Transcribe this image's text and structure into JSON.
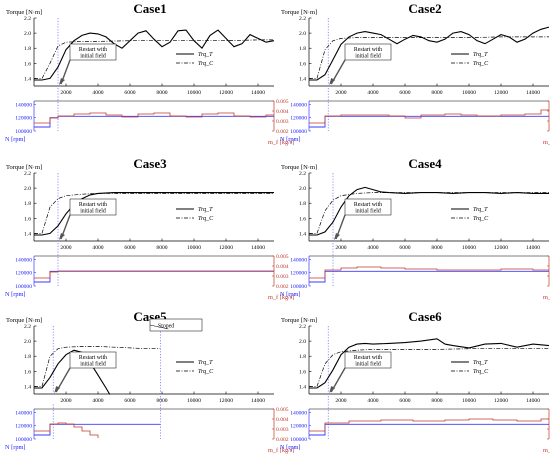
{
  "colors": {
    "N": "#3b3bff",
    "m": "#c0392b",
    "Trq": "#000000",
    "axis": "#000000"
  },
  "common": {
    "torque_label": "Torque [N·m]",
    "legend_t": "Trq_T",
    "legend_c": "Trq_C",
    "n_label": "N [rpm]",
    "m_label": "m_f [kg/s]",
    "restart_text": [
      "Restart with",
      "initial field"
    ],
    "stopped_text": "Stoped"
  },
  "chart_data": [
    {
      "type": "line",
      "title": "Case1",
      "xlabel": "",
      "ylabel": "Torque [N·m]",
      "xlim": [
        0,
        15000
      ],
      "ylim": [
        1.3,
        2.2
      ],
      "yticks": [
        1.4,
        1.6,
        1.8,
        2.0,
        2.2
      ],
      "xticks": [
        2000,
        4000,
        6000,
        8000,
        10000,
        12000,
        14000
      ],
      "restart_x": 1500,
      "stopped": false,
      "series": [
        {
          "name": "Trq_T",
          "style": "solid",
          "x": [
            0,
            500,
            1000,
            1500,
            2000,
            2500,
            3000,
            3500,
            4000,
            4500,
            5000,
            5500,
            6000,
            6500,
            7000,
            7500,
            8000,
            8500,
            9000,
            9500,
            10000,
            10500,
            11000,
            11500,
            12000,
            12500,
            13000,
            13500,
            14000,
            14500,
            15000
          ],
          "y": [
            1.38,
            1.38,
            1.4,
            1.55,
            1.78,
            1.9,
            1.97,
            2.0,
            1.99,
            1.95,
            1.86,
            1.8,
            1.9,
            2.0,
            2.03,
            1.92,
            1.82,
            1.88,
            2.03,
            2.04,
            1.9,
            1.8,
            1.97,
            2.04,
            1.93,
            1.82,
            1.86,
            1.98,
            1.93,
            1.88,
            1.9
          ]
        },
        {
          "name": "Trq_C",
          "style": "dashdot",
          "x": [
            0,
            500,
            1000,
            1500,
            2000,
            3000,
            4000,
            6000,
            8000,
            10000,
            12000,
            14000,
            15000
          ],
          "y": [
            1.4,
            1.4,
            1.6,
            1.83,
            1.88,
            1.89,
            1.89,
            1.9,
            1.9,
            1.9,
            1.9,
            1.91,
            1.91
          ]
        }
      ],
      "n_rpm": {
        "yticks": [
          100000,
          120000,
          140000
        ],
        "ylim": [
          100000,
          145000
        ],
        "x": [
          0,
          500,
          1000,
          1500,
          15000
        ],
        "y": [
          106000,
          106000,
          120000,
          122000,
          122000
        ]
      },
      "m_f": {
        "yticks": [
          0.002,
          0.003,
          0.004,
          0.005
        ],
        "ylim": [
          0.002,
          0.005
        ],
        "x": [
          0,
          1000,
          1500,
          2500,
          3500,
          4500,
          5500,
          6500,
          7500,
          8500,
          9500,
          10500,
          11500,
          12500,
          13500,
          14500,
          15000
        ],
        "y": [
          0.0028,
          0.0033,
          0.0035,
          0.0037,
          0.0038,
          0.0036,
          0.0034,
          0.0037,
          0.0038,
          0.0035,
          0.0034,
          0.0037,
          0.0038,
          0.0035,
          0.0034,
          0.0036,
          0.0036
        ]
      }
    },
    {
      "type": "line",
      "title": "Case2",
      "xlabel": "",
      "ylabel": "Torque [N·m]",
      "xlim": [
        0,
        15000
      ],
      "ylim": [
        1.3,
        2.2
      ],
      "yticks": [
        1.4,
        1.6,
        1.8,
        2.0,
        2.2
      ],
      "xticks": [
        2000,
        4000,
        6000,
        8000,
        10000,
        12000,
        14000
      ],
      "restart_x": 1200,
      "stopped": false,
      "series": [
        {
          "name": "Trq_T",
          "style": "solid",
          "x": [
            0,
            500,
            1000,
            1500,
            2000,
            2500,
            3000,
            3500,
            4000,
            4500,
            5000,
            5500,
            6000,
            6500,
            7000,
            7500,
            8000,
            8500,
            9000,
            9500,
            10000,
            10500,
            11000,
            11500,
            12000,
            12500,
            13000,
            13500,
            14000,
            14500,
            15000
          ],
          "y": [
            1.38,
            1.38,
            1.45,
            1.65,
            1.85,
            1.95,
            2.0,
            2.02,
            2.0,
            1.98,
            1.92,
            1.86,
            1.92,
            1.97,
            1.95,
            1.9,
            1.88,
            1.92,
            2.0,
            2.02,
            1.98,
            1.9,
            1.86,
            1.92,
            1.98,
            1.95,
            1.88,
            1.92,
            2.0,
            2.05,
            2.08
          ]
        },
        {
          "name": "Trq_C",
          "style": "dashdot",
          "x": [
            0,
            500,
            1000,
            1500,
            2000,
            3000,
            4000,
            6000,
            8000,
            10000,
            12000,
            14000,
            15000
          ],
          "y": [
            1.4,
            1.4,
            1.78,
            1.9,
            1.93,
            1.94,
            1.94,
            1.94,
            1.94,
            1.94,
            1.95,
            1.95,
            1.95
          ]
        }
      ],
      "n_rpm": {
        "yticks": [
          100000,
          120000,
          140000
        ],
        "ylim": [
          100000,
          145000
        ],
        "x": [
          0,
          500,
          1000,
          15000
        ],
        "y": [
          106000,
          106000,
          122000,
          122000
        ]
      },
      "m_f": {
        "yticks": [
          0.002,
          0.003,
          0.004,
          0.005
        ],
        "ylim": [
          0.002,
          0.005
        ],
        "x": [
          0,
          1000,
          2000,
          3500,
          5000,
          6000,
          7000,
          8500,
          9500,
          10500,
          12000,
          13500,
          14500,
          15000
        ],
        "y": [
          0.0028,
          0.0035,
          0.0036,
          0.0036,
          0.0035,
          0.0033,
          0.0036,
          0.0037,
          0.0036,
          0.0035,
          0.0036,
          0.0037,
          0.0041,
          0.0041
        ]
      }
    },
    {
      "type": "line",
      "title": "Case3",
      "xlabel": "",
      "ylabel": "Torque [N·m]",
      "xlim": [
        0,
        15000
      ],
      "ylim": [
        1.3,
        2.2
      ],
      "yticks": [
        1.4,
        1.6,
        1.8,
        2.0,
        2.2
      ],
      "xticks": [
        2000,
        4000,
        6000,
        8000,
        10000,
        12000,
        14000
      ],
      "restart_x": 1500,
      "stopped": false,
      "series": [
        {
          "name": "Trq_T",
          "style": "solid",
          "x": [
            0,
            500,
            1000,
            1500,
            2000,
            2500,
            3000,
            3500,
            4000,
            5000,
            6000,
            7000,
            8000,
            9000,
            10000,
            11000,
            12000,
            13000,
            14000,
            15000
          ],
          "y": [
            1.38,
            1.38,
            1.4,
            1.5,
            1.66,
            1.78,
            1.86,
            1.91,
            1.93,
            1.94,
            1.94,
            1.94,
            1.94,
            1.94,
            1.94,
            1.94,
            1.94,
            1.94,
            1.94,
            1.94
          ]
        },
        {
          "name": "Trq_C",
          "style": "dashdot",
          "x": [
            0,
            500,
            1000,
            1500,
            2000,
            3000,
            4000,
            6000,
            8000,
            10000,
            12000,
            14000,
            15000
          ],
          "y": [
            1.4,
            1.4,
            1.75,
            1.86,
            1.9,
            1.92,
            1.93,
            1.93,
            1.93,
            1.93,
            1.93,
            1.93,
            1.93
          ]
        }
      ],
      "n_rpm": {
        "yticks": [
          100000,
          120000,
          140000
        ],
        "ylim": [
          100000,
          145000
        ],
        "x": [
          0,
          500,
          1000,
          15000
        ],
        "y": [
          106000,
          106000,
          122000,
          122000
        ]
      },
      "m_f": {
        "yticks": [
          0.002,
          0.003,
          0.004,
          0.005
        ],
        "ylim": [
          0.002,
          0.005
        ],
        "x": [
          0,
          1000,
          1500,
          15000
        ],
        "y": [
          0.0028,
          0.0034,
          0.0035,
          0.0035
        ]
      }
    },
    {
      "type": "line",
      "title": "Case4",
      "xlabel": "",
      "ylabel": "Torque [N·m]",
      "xlim": [
        0,
        15000
      ],
      "ylim": [
        1.3,
        2.2
      ],
      "yticks": [
        1.4,
        1.6,
        1.8,
        2.0,
        2.2
      ],
      "xticks": [
        2000,
        4000,
        6000,
        8000,
        10000,
        12000,
        14000
      ],
      "restart_x": 1500,
      "stopped": false,
      "series": [
        {
          "name": "Trq_T",
          "style": "solid",
          "x": [
            0,
            500,
            1000,
            1500,
            2000,
            2500,
            3000,
            3500,
            4000,
            4500,
            5000,
            6000,
            7000,
            8000,
            9000,
            10000,
            11000,
            12000,
            13000,
            14000,
            15000
          ],
          "y": [
            1.38,
            1.38,
            1.42,
            1.55,
            1.75,
            1.9,
            1.98,
            2.01,
            1.98,
            1.95,
            1.94,
            1.93,
            1.94,
            1.94,
            1.93,
            1.94,
            1.94,
            1.93,
            1.94,
            1.93,
            1.93
          ]
        },
        {
          "name": "Trq_C",
          "style": "dashdot",
          "x": [
            0,
            500,
            1000,
            1500,
            2000,
            3000,
            4000,
            6000,
            8000,
            10000,
            12000,
            14000,
            15000
          ],
          "y": [
            1.4,
            1.4,
            1.7,
            1.84,
            1.9,
            1.93,
            1.94,
            1.94,
            1.94,
            1.94,
            1.94,
            1.94,
            1.94
          ]
        }
      ],
      "n_rpm": {
        "yticks": [
          100000,
          120000,
          140000
        ],
        "ylim": [
          100000,
          145000
        ],
        "x": [
          0,
          500,
          1000,
          15000
        ],
        "y": [
          106000,
          106000,
          122000,
          122000
        ]
      },
      "m_f": {
        "yticks": [
          0.002,
          0.003,
          0.004,
          0.005
        ],
        "ylim": [
          0.002,
          0.005
        ],
        "x": [
          0,
          1000,
          2000,
          3000,
          4500,
          6000,
          8000,
          10000,
          12000,
          14000,
          15000
        ],
        "y": [
          0.0028,
          0.0036,
          0.0038,
          0.0039,
          0.0038,
          0.0037,
          0.0036,
          0.0036,
          0.0037,
          0.0036,
          0.0036
        ]
      }
    },
    {
      "type": "line",
      "title": "Case5",
      "xlabel": "",
      "ylabel": "Torque [N·m]",
      "xlim": [
        0,
        15000
      ],
      "ylim": [
        1.3,
        2.2
      ],
      "yticks": [
        1.4,
        1.6,
        1.8,
        2.0,
        2.2
      ],
      "xticks": [
        2000,
        4000,
        6000,
        8000,
        10000,
        12000,
        14000
      ],
      "restart_x": 1200,
      "stopped": true,
      "stopped_x": 7900,
      "series": [
        {
          "name": "Trq_T",
          "style": "solid",
          "x": [
            0,
            500,
            1000,
            1500,
            2000,
            2500,
            3000,
            3500,
            4000,
            4500,
            5000
          ],
          "y": [
            1.38,
            1.38,
            1.52,
            1.7,
            1.82,
            1.88,
            1.85,
            1.72,
            1.55,
            1.38,
            1.2
          ]
        },
        {
          "name": "Trq_C",
          "style": "dashdot",
          "x": [
            0,
            500,
            1000,
            1500,
            2000,
            3000,
            4000,
            5000,
            6000,
            7000,
            7900
          ],
          "y": [
            1.4,
            1.4,
            1.8,
            1.9,
            1.92,
            1.93,
            1.93,
            1.92,
            1.91,
            1.9,
            1.9
          ]
        }
      ],
      "n_rpm": {
        "yticks": [
          100000,
          120000,
          140000
        ],
        "ylim": [
          100000,
          145000
        ],
        "x": [
          0,
          500,
          1000,
          7900
        ],
        "y": [
          106000,
          106000,
          122000,
          122000
        ]
      },
      "m_f": {
        "yticks": [
          0.002,
          0.003,
          0.004,
          0.005
        ],
        "ylim": [
          0.002,
          0.005
        ],
        "x": [
          0,
          1000,
          1500,
          2000,
          2500,
          3000,
          3500,
          4000
        ],
        "y": [
          0.0028,
          0.0035,
          0.0036,
          0.0035,
          0.0032,
          0.0028,
          0.0024,
          0.0021
        ]
      }
    },
    {
      "type": "line",
      "title": "Case6",
      "xlabel": "",
      "ylabel": "Torque [N·m]",
      "xlim": [
        0,
        15000
      ],
      "ylim": [
        1.3,
        2.2
      ],
      "yticks": [
        1.4,
        1.6,
        1.8,
        2.0,
        2.2
      ],
      "xticks": [
        2000,
        4000,
        6000,
        8000,
        10000,
        12000,
        14000
      ],
      "restart_x": 1200,
      "stopped": false,
      "series": [
        {
          "name": "Trq_T",
          "style": "solid",
          "x": [
            0,
            500,
            1000,
            1500,
            2000,
            2500,
            3000,
            3500,
            4000,
            5000,
            6000,
            7000,
            8000,
            8500,
            9000,
            10000,
            11000,
            12000,
            13000,
            14000,
            15000
          ],
          "y": [
            1.38,
            1.38,
            1.45,
            1.62,
            1.82,
            1.92,
            1.96,
            1.97,
            1.96,
            1.97,
            1.98,
            2.0,
            2.03,
            1.96,
            1.94,
            1.91,
            1.96,
            1.97,
            1.92,
            1.96,
            1.94
          ]
        },
        {
          "name": "Trq_C",
          "style": "dashdot",
          "x": [
            0,
            500,
            1000,
            1500,
            2000,
            3000,
            4000,
            6000,
            8000,
            10000,
            12000,
            14000,
            15000
          ],
          "y": [
            1.4,
            1.4,
            1.7,
            1.82,
            1.86,
            1.88,
            1.89,
            1.89,
            1.89,
            1.9,
            1.9,
            1.9,
            1.9
          ]
        }
      ],
      "n_rpm": {
        "yticks": [
          100000,
          120000,
          140000
        ],
        "ylim": [
          100000,
          145000
        ],
        "x": [
          0,
          500,
          1000,
          15000
        ],
        "y": [
          106000,
          106000,
          122000,
          122000
        ]
      },
      "m_f": {
        "yticks": [
          0.002,
          0.003,
          0.004,
          0.005
        ],
        "ylim": [
          0.002,
          0.005
        ],
        "x": [
          0,
          1000,
          2500,
          4500,
          6500,
          8500,
          10000,
          11500,
          13000,
          14500,
          15000
        ],
        "y": [
          0.0028,
          0.0036,
          0.0038,
          0.0039,
          0.0038,
          0.0039,
          0.004,
          0.0039,
          0.0038,
          0.004,
          0.004
        ]
      }
    }
  ]
}
